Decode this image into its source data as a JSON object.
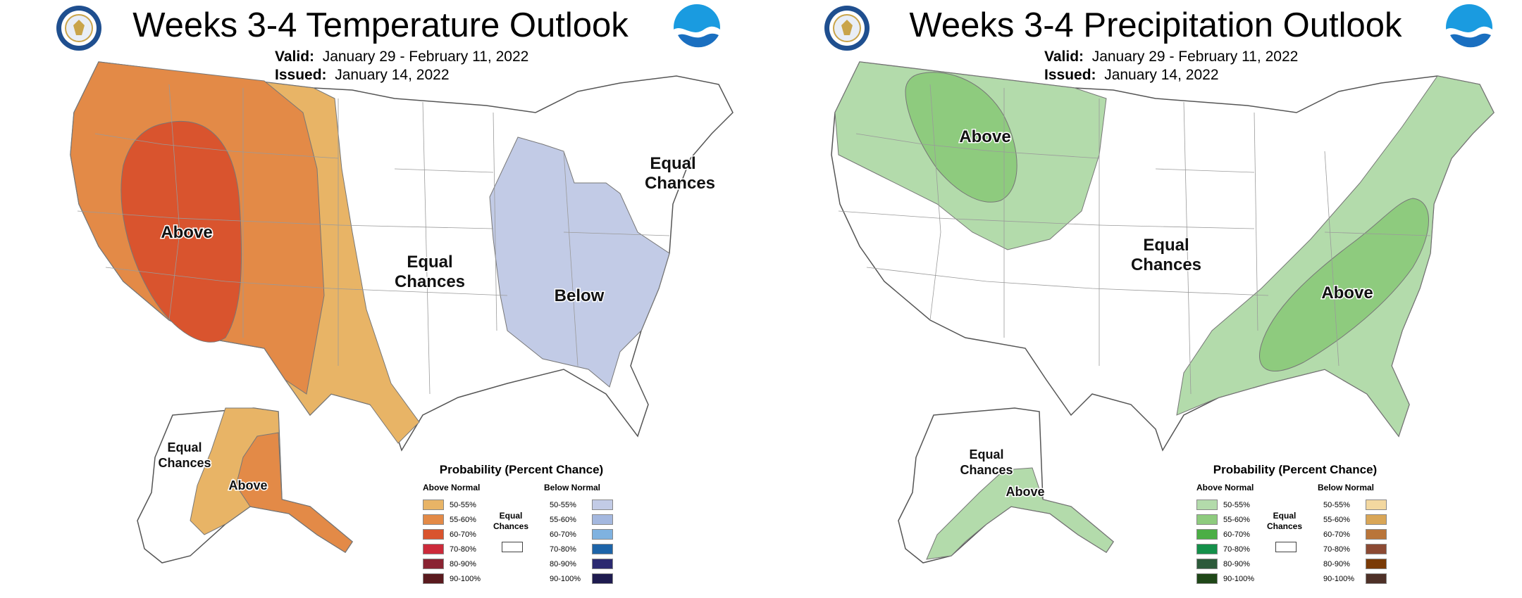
{
  "left": {
    "title": "Weeks 3-4 Temperature Outlook",
    "valid_label": "Valid:",
    "valid_value": "January 29 - February 11, 2022",
    "issued_label": "Issued:",
    "issued_value": "January 14, 2022",
    "labels": {
      "above_west": "Above",
      "equal_plains_1": "Equal",
      "equal_plains_2": "Chances",
      "below_east": "Below",
      "equal_ne_1": "Equal",
      "equal_ne_2": "Chances",
      "alaska_equal_1": "Equal",
      "alaska_equal_2": "Chances",
      "alaska_above": "Above"
    },
    "legend": {
      "title": "Probability (Percent Chance)",
      "above_head": "Above Normal",
      "below_head": "Below Normal",
      "equal_1": "Equal",
      "equal_2": "Chances",
      "ranges": [
        "50-55%",
        "55-60%",
        "60-70%",
        "70-80%",
        "80-90%",
        "90-100%"
      ],
      "above_colors": [
        "#e8b466",
        "#e38a47",
        "#d9542e",
        "#cc2a3a",
        "#8a2332",
        "#5a1a1e"
      ],
      "below_colors": [
        "#c2cbe6",
        "#a4b8df",
        "#7fb2e0",
        "#1d64a8",
        "#2b2970",
        "#1e1b4f"
      ]
    }
  },
  "right": {
    "title": "Weeks 3-4 Precipitation Outlook",
    "valid_label": "Valid:",
    "valid_value": "January 29 - February 11, 2022",
    "issued_label": "Issued:",
    "issued_value": "January 14, 2022",
    "labels": {
      "above_nw": "Above",
      "equal_center_1": "Equal",
      "equal_center_2": "Chances",
      "above_se": "Above",
      "alaska_equal_1": "Equal",
      "alaska_equal_2": "Chances",
      "alaska_above": "Above"
    },
    "legend": {
      "title": "Probability (Percent Chance)",
      "above_head": "Above Normal",
      "below_head": "Below Normal",
      "equal_1": "Equal",
      "equal_2": "Chances",
      "ranges": [
        "50-55%",
        "55-60%",
        "60-70%",
        "70-80%",
        "80-90%",
        "90-100%"
      ],
      "above_colors": [
        "#b3dbab",
        "#8ecb7e",
        "#4bae45",
        "#14904a",
        "#2c5a3a",
        "#1f4718"
      ],
      "below_colors": [
        "#f3d8a0",
        "#d9a657",
        "#b9753a",
        "#8c4a33",
        "#7a3a06",
        "#4e3027"
      ]
    }
  },
  "icons": {
    "seal": "department-of-commerce-seal-icon",
    "noaa": "noaa-logo-icon"
  }
}
